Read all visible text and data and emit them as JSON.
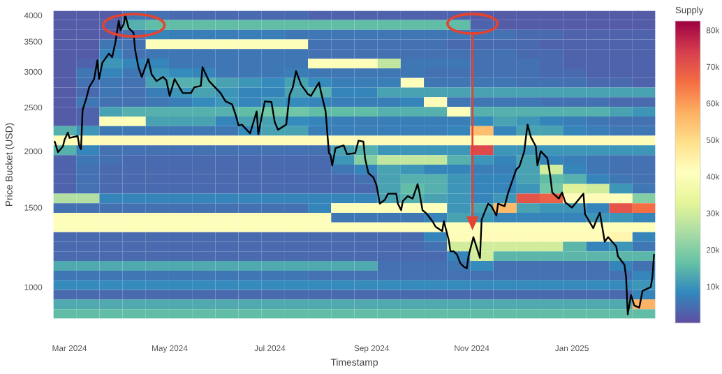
{
  "chart_data": [
    {
      "type": "heatmap",
      "clabel": "Supply",
      "clim": [
        0,
        82500
      ],
      "cticks": [
        {
          "value": 10000,
          "label": "10k"
        },
        {
          "value": 20000,
          "label": "20k"
        },
        {
          "value": 30000,
          "label": "30k"
        },
        {
          "value": 40000,
          "label": "40k"
        },
        {
          "value": 50000,
          "label": "50k"
        },
        {
          "value": 60000,
          "label": "60k"
        },
        {
          "value": 70000,
          "label": "70k"
        },
        {
          "value": 80000,
          "label": "80k"
        }
      ],
      "categories": [
        null,
        null,
        null,
        null,
        null,
        null,
        null,
        null,
        null,
        null,
        null,
        null,
        null,
        null,
        null,
        null,
        null,
        null,
        null,
        null,
        null,
        null,
        null,
        null,
        null,
        null
      ],
      "y_categories": [
        null,
        null,
        null,
        null,
        null,
        null,
        null,
        null,
        null,
        null,
        null,
        null,
        null,
        null,
        null,
        null,
        null,
        null,
        null,
        null,
        null,
        null,
        null,
        null,
        null,
        null,
        null,
        null,
        null,
        null,
        null,
        null
      ],
      "cells": [
        [
          2000,
          2000,
          2000,
          6000,
          5000,
          4000,
          4000,
          4000,
          4000,
          4000,
          4000,
          3000,
          3000,
          3000,
          3000,
          3000,
          3000,
          3000,
          2000,
          2000,
          2000,
          2000,
          2000,
          2000,
          2000,
          2000
        ],
        [
          2000,
          2000,
          3000,
          14000,
          16000,
          16000,
          16000,
          16000,
          16000,
          16000,
          16000,
          16000,
          16000,
          16000,
          16000,
          16000,
          16000,
          16000,
          3000,
          2000,
          2000,
          2000,
          2000,
          2000,
          2000,
          2000
        ],
        [
          2000,
          2000,
          2000,
          5000,
          8000,
          7000,
          7000,
          7000,
          7000,
          7000,
          6000,
          6000,
          6000,
          6000,
          6000,
          6000,
          6000,
          6000,
          5000,
          5000,
          4000,
          4000,
          3000,
          3000,
          3000,
          3000
        ],
        [
          2000,
          2000,
          6000,
          5000,
          40000,
          40000,
          40000,
          40000,
          40000,
          40000,
          40000,
          5000,
          5000,
          5000,
          5000,
          5000,
          5000,
          4000,
          4000,
          4000,
          4000,
          3000,
          3000,
          3000,
          3000,
          3000
        ],
        [
          2000,
          2000,
          8000,
          5000,
          6000,
          6000,
          6000,
          6000,
          6000,
          6000,
          6000,
          5000,
          5000,
          5000,
          5000,
          5000,
          5000,
          5000,
          5000,
          5000,
          4000,
          4000,
          3000,
          3000,
          3000,
          3000
        ],
        [
          2000,
          3000,
          10000,
          8000,
          8000,
          6000,
          6000,
          6000,
          6000,
          6000,
          6000,
          40000,
          40000,
          40000,
          28000,
          6000,
          6000,
          6000,
          5000,
          5000,
          5000,
          4000,
          3000,
          3000,
          3000,
          3000
        ],
        [
          2000,
          6000,
          8000,
          6000,
          10000,
          9000,
          8000,
          6000,
          6000,
          6000,
          7000,
          6000,
          6000,
          6000,
          6000,
          6000,
          5000,
          5000,
          5000,
          5000,
          5000,
          4000,
          4000,
          3000,
          3000,
          3000
        ],
        [
          2000,
          5000,
          6000,
          5000,
          12000,
          14000,
          14000,
          12000,
          10000,
          9000,
          12000,
          9000,
          7000,
          7000,
          7000,
          40000,
          6000,
          6000,
          6000,
          6000,
          5000,
          5000,
          5000,
          4000,
          4000,
          3000
        ],
        [
          2000,
          4000,
          6000,
          5000,
          7000,
          10000,
          12000,
          10000,
          8000,
          8000,
          12000,
          14000,
          8000,
          8000,
          12000,
          12000,
          12000,
          12000,
          12000,
          12000,
          12000,
          12000,
          12000,
          12000,
          12000,
          12000
        ],
        [
          2000,
          6000,
          5000,
          5000,
          6000,
          7000,
          9000,
          10000,
          8000,
          10000,
          9000,
          8000,
          7000,
          7000,
          7000,
          8000,
          42000,
          6000,
          6000,
          6000,
          6000,
          5000,
          5000,
          5000,
          4000,
          4000
        ],
        [
          2000,
          3000,
          12000,
          14000,
          14000,
          14000,
          14000,
          14000,
          16000,
          18000,
          18000,
          16000,
          16000,
          16000,
          14000,
          14000,
          14000,
          40000,
          14000,
          14000,
          14000,
          14000,
          14000,
          14000,
          12000,
          10000
        ],
        [
          2000,
          3000,
          42000,
          40000,
          12000,
          12000,
          12000,
          8000,
          12000,
          12000,
          9000,
          8000,
          7000,
          7000,
          7000,
          7000,
          7000,
          7000,
          9000,
          12000,
          10000,
          8000,
          7000,
          6000,
          5000,
          5000
        ],
        [
          14000,
          10000,
          6000,
          6000,
          6000,
          6000,
          6000,
          6000,
          9000,
          12000,
          12000,
          7000,
          7000,
          7000,
          7000,
          7000,
          7000,
          8000,
          55000,
          8000,
          12000,
          12000,
          8000,
          7000,
          6000,
          6000
        ],
        [
          42000,
          42000,
          42000,
          42000,
          42000,
          42000,
          42000,
          42000,
          42000,
          42000,
          42000,
          42000,
          42000,
          42000,
          42000,
          42000,
          42000,
          42000,
          42000,
          42000,
          42000,
          42000,
          42000,
          42000,
          42000,
          42000
        ],
        [
          14000,
          8000,
          5000,
          5000,
          5000,
          5000,
          5000,
          5000,
          5000,
          5000,
          5000,
          5000,
          12000,
          14000,
          10000,
          10000,
          10000,
          10000,
          72000,
          10000,
          10000,
          10000,
          10000,
          10000,
          10000,
          10000
        ],
        [
          3000,
          6000,
          5000,
          4000,
          4000,
          4000,
          4000,
          4000,
          4000,
          4000,
          4000,
          4000,
          10000,
          20000,
          28000,
          28000,
          28000,
          14000,
          10000,
          8000,
          12000,
          8000,
          7000,
          6000,
          5000,
          5000
        ],
        [
          3000,
          5000,
          4000,
          4000,
          4000,
          4000,
          4000,
          4000,
          4000,
          4000,
          4000,
          4000,
          6000,
          8000,
          12000,
          10000,
          8000,
          8000,
          7000,
          7000,
          12000,
          30000,
          8000,
          6000,
          5000,
          5000
        ],
        [
          3000,
          5000,
          4000,
          4000,
          4000,
          4000,
          4000,
          4000,
          4000,
          4000,
          4000,
          4000,
          4000,
          5000,
          12000,
          14000,
          14000,
          10000,
          8000,
          8000,
          12000,
          16000,
          14000,
          8000,
          6000,
          5000
        ],
        [
          3000,
          5000,
          4000,
          4000,
          4000,
          4000,
          4000,
          4000,
          4000,
          4000,
          4000,
          4000,
          4000,
          4000,
          12000,
          16000,
          14000,
          10000,
          8000,
          8000,
          10000,
          18000,
          32000,
          30000,
          10000,
          6000
        ],
        [
          26000,
          26000,
          8000,
          8000,
          8000,
          8000,
          8000,
          8000,
          8000,
          8000,
          8000,
          8000,
          8000,
          8000,
          12000,
          14000,
          12000,
          10000,
          8000,
          10000,
          70000,
          68000,
          42000,
          42000,
          40000,
          20000
        ],
        [
          5000,
          5000,
          5000,
          5000,
          5000,
          5000,
          5000,
          5000,
          5000,
          5000,
          5000,
          8000,
          40000,
          40000,
          40000,
          40000,
          40000,
          10000,
          12000,
          56000,
          12000,
          10000,
          10000,
          8000,
          70000,
          66000
        ],
        [
          40000,
          40000,
          40000,
          40000,
          40000,
          40000,
          40000,
          40000,
          40000,
          40000,
          40000,
          40000,
          6000,
          6000,
          6000,
          6000,
          8000,
          12000,
          10000,
          8000,
          8000,
          8000,
          8000,
          10000,
          10000,
          8000
        ],
        [
          40000,
          40000,
          40000,
          40000,
          40000,
          40000,
          40000,
          40000,
          40000,
          40000,
          40000,
          40000,
          40000,
          40000,
          40000,
          40000,
          40000,
          40000,
          40000,
          40000,
          40000,
          40000,
          40000,
          40000,
          40000,
          40000
        ],
        [
          4000,
          4000,
          4000,
          4000,
          4000,
          4000,
          4000,
          4000,
          4000,
          4000,
          4000,
          4000,
          4000,
          4000,
          4000,
          4000,
          8000,
          42000,
          42000,
          42000,
          42000,
          42000,
          42000,
          42000,
          44000,
          8000
        ],
        [
          4000,
          4000,
          4000,
          4000,
          4000,
          4000,
          4000,
          4000,
          4000,
          4000,
          4000,
          4000,
          4000,
          4000,
          4000,
          4000,
          5000,
          30000,
          30000,
          30000,
          30000,
          30000,
          15000,
          8000,
          10000,
          6000
        ],
        [
          4000,
          4000,
          4000,
          4000,
          4000,
          4000,
          4000,
          4000,
          4000,
          4000,
          4000,
          4000,
          4000,
          4000,
          4000,
          4000,
          4000,
          8000,
          30000,
          15000,
          15000,
          15000,
          15000,
          15000,
          15000,
          15000
        ],
        [
          13000,
          13000,
          13000,
          13000,
          13000,
          13000,
          13000,
          13000,
          13000,
          13000,
          13000,
          13000,
          13000,
          13000,
          5000,
          5000,
          5000,
          6000,
          9000,
          5000,
          5000,
          5000,
          5000,
          5000,
          8000,
          5000
        ],
        [
          6000,
          6000,
          6000,
          6000,
          6000,
          6000,
          6000,
          6000,
          6000,
          6000,
          6000,
          5000,
          5000,
          5000,
          5000,
          5000,
          5000,
          5000,
          5000,
          5000,
          5000,
          5000,
          5000,
          5000,
          5000,
          8000
        ],
        [
          9000,
          9000,
          9000,
          9000,
          9000,
          9000,
          9000,
          9000,
          9000,
          9000,
          9000,
          9000,
          9000,
          9000,
          9000,
          9000,
          9000,
          9000,
          9000,
          9000,
          9000,
          9000,
          9000,
          9000,
          9000,
          10000
        ],
        [
          4000,
          4000,
          4000,
          4000,
          4000,
          4000,
          4000,
          4000,
          4000,
          4000,
          4000,
          4000,
          4000,
          4000,
          4000,
          4000,
          4000,
          4000,
          4000,
          4000,
          4000,
          4000,
          4000,
          4000,
          4000,
          8000
        ],
        [
          13000,
          13000,
          13000,
          13000,
          13000,
          13000,
          13000,
          13000,
          13000,
          13000,
          13000,
          13000,
          13000,
          13000,
          13000,
          13000,
          13000,
          13000,
          13000,
          13000,
          13000,
          13000,
          13000,
          13000,
          13000,
          57000
        ],
        [
          16000,
          16000,
          16000,
          16000,
          16000,
          16000,
          16000,
          16000,
          16000,
          16000,
          16000,
          16000,
          16000,
          16000,
          16000,
          16000,
          16000,
          16000,
          16000,
          16000,
          16000,
          16000,
          16000,
          16000,
          16000,
          16000
        ]
      ]
    },
    {
      "type": "line",
      "xlabel": "Timestamp",
      "ylabel": "Price Bucket (USD)",
      "log": "y",
      "xlim": [
        "2024-02-20",
        "2025-02-21"
      ],
      "ylim": [
        850,
        4100
      ],
      "xticks": [
        {
          "value": "2024-03-01",
          "label": "Mar 2024"
        },
        {
          "value": "2024-05-01",
          "label": "May 2024"
        },
        {
          "value": "2024-07-01",
          "label": "Jul 2024"
        },
        {
          "value": "2024-09-01",
          "label": "Sep 2024"
        },
        {
          "value": "2024-11-01",
          "label": "Nov 2024"
        },
        {
          "value": "2025-01-01",
          "label": "Jan 2025"
        }
      ],
      "yticks": [
        1000,
        1500,
        2000,
        2500,
        3000,
        3500,
        4000
      ],
      "x": [
        "2024-02-21",
        "2024-02-23",
        "2024-02-26",
        "2024-02-27",
        "2024-02-29",
        "2024-03-01",
        "2024-03-06",
        "2024-03-07",
        "2024-03-08",
        "2024-03-09",
        "2024-03-11",
        "2024-03-13",
        "2024-03-16",
        "2024-03-18",
        "2024-03-19",
        "2024-03-21",
        "2024-03-25",
        "2024-03-27",
        "2024-03-29",
        "2024-03-31",
        "2024-04-01",
        "2024-04-03",
        "2024-04-04",
        "2024-04-06",
        "2024-04-09",
        "2024-04-10",
        "2024-04-12",
        "2024-04-14",
        "2024-04-18",
        "2024-04-20",
        "2024-04-23",
        "2024-04-27",
        "2024-04-29",
        "2024-05-01",
        "2024-05-04",
        "2024-05-09",
        "2024-05-14",
        "2024-05-16",
        "2024-05-20",
        "2024-05-21",
        "2024-05-25",
        "2024-06-01",
        "2024-06-04",
        "2024-06-08",
        "2024-06-10",
        "2024-06-12",
        "2024-06-14",
        "2024-06-19",
        "2024-06-23",
        "2024-06-24",
        "2024-06-26",
        "2024-06-28",
        "2024-07-02",
        "2024-07-04",
        "2024-07-06",
        "2024-07-11",
        "2024-07-13",
        "2024-07-15",
        "2024-07-17",
        "2024-07-20",
        "2024-07-24",
        "2024-07-26",
        "2024-07-31",
        "2024-08-01",
        "2024-08-04",
        "2024-08-06",
        "2024-08-07",
        "2024-08-08",
        "2024-08-10",
        "2024-08-15",
        "2024-08-17",
        "2024-08-22",
        "2024-08-24",
        "2024-08-27",
        "2024-08-28",
        "2024-08-30",
        "2024-09-02",
        "2024-09-04",
        "2024-09-06",
        "2024-09-09",
        "2024-09-11",
        "2024-09-16",
        "2024-09-17",
        "2024-09-19",
        "2024-09-20",
        "2024-09-23",
        "2024-09-26",
        "2024-09-29",
        "2024-09-30",
        "2024-10-02",
        "2024-10-04",
        "2024-10-08",
        "2024-10-10",
        "2024-10-14",
        "2024-10-15",
        "2024-10-18",
        "2024-10-19",
        "2024-10-21",
        "2024-10-23",
        "2024-10-25",
        "2024-10-27",
        "2024-10-29",
        "2024-10-30",
        "2024-11-02",
        "2024-11-06",
        "2024-11-07",
        "2024-11-09",
        "2024-11-11",
        "2024-11-13",
        "2024-11-16",
        "2024-11-17",
        "2024-11-21",
        "2024-11-23",
        "2024-11-25",
        "2024-11-28",
        "2024-11-30",
        "2024-12-03",
        "2024-12-04",
        "2024-12-05",
        "2024-12-07",
        "2024-12-10",
        "2024-12-11",
        "2024-12-13",
        "2024-12-17",
        "2024-12-18",
        "2024-12-19",
        "2024-12-20",
        "2024-12-24",
        "2024-12-26",
        "2024-12-28",
        "2025-01-01",
        "2025-01-03",
        "2025-01-08",
        "2025-01-09",
        "2025-01-14",
        "2025-01-16",
        "2025-01-18",
        "2025-01-21",
        "2025-01-23",
        "2025-01-28",
        "2025-01-29",
        "2025-02-02",
        "2025-02-03",
        "2025-02-04",
        "2025-02-06",
        "2025-02-08",
        "2025-02-11",
        "2025-02-13",
        "2025-02-18",
        "2025-02-19",
        "2025-02-20"
      ],
      "series": [
        {
          "color": "#000000",
          "values": [
            2100,
            1990,
            2050,
            2120,
            2200,
            2140,
            2160,
            2050,
            2020,
            2470,
            2600,
            2770,
            2890,
            3180,
            2890,
            3140,
            3290,
            3230,
            3490,
            3890,
            3710,
            3820,
            4000,
            3750,
            3660,
            3350,
            3070,
            2920,
            3200,
            2960,
            2860,
            2920,
            2870,
            2650,
            2890,
            2690,
            2690,
            2770,
            2790,
            3070,
            2860,
            2690,
            2580,
            2540,
            2420,
            2280,
            2290,
            2190,
            2450,
            2180,
            2380,
            2580,
            2570,
            2320,
            2230,
            2290,
            2660,
            2770,
            3010,
            2810,
            2680,
            2650,
            2840,
            2720,
            2450,
            1980,
            1960,
            1860,
            2030,
            2060,
            1970,
            1980,
            2110,
            2100,
            1930,
            1790,
            1750,
            1680,
            1530,
            1560,
            1610,
            1610,
            1530,
            1480,
            1550,
            1590,
            1570,
            1690,
            1630,
            1480,
            1460,
            1400,
            1360,
            1330,
            1400,
            1270,
            1200,
            1200,
            1180,
            1130,
            1110,
            1100,
            1170,
            1290,
            1160,
            1410,
            1470,
            1530,
            1510,
            1440,
            1530,
            1510,
            1610,
            1690,
            1820,
            1850,
            2000,
            2150,
            2290,
            2150,
            2050,
            1860,
            2000,
            1930,
            1840,
            1740,
            1620,
            1570,
            1620,
            1540,
            1500,
            1530,
            1610,
            1450,
            1350,
            1410,
            1460,
            1260,
            1290,
            1230,
            1170,
            1120,
            1050,
            870,
            960,
            910,
            900,
            980,
            1000,
            1050,
            1180
          ]
        }
      ]
    }
  ]
}
